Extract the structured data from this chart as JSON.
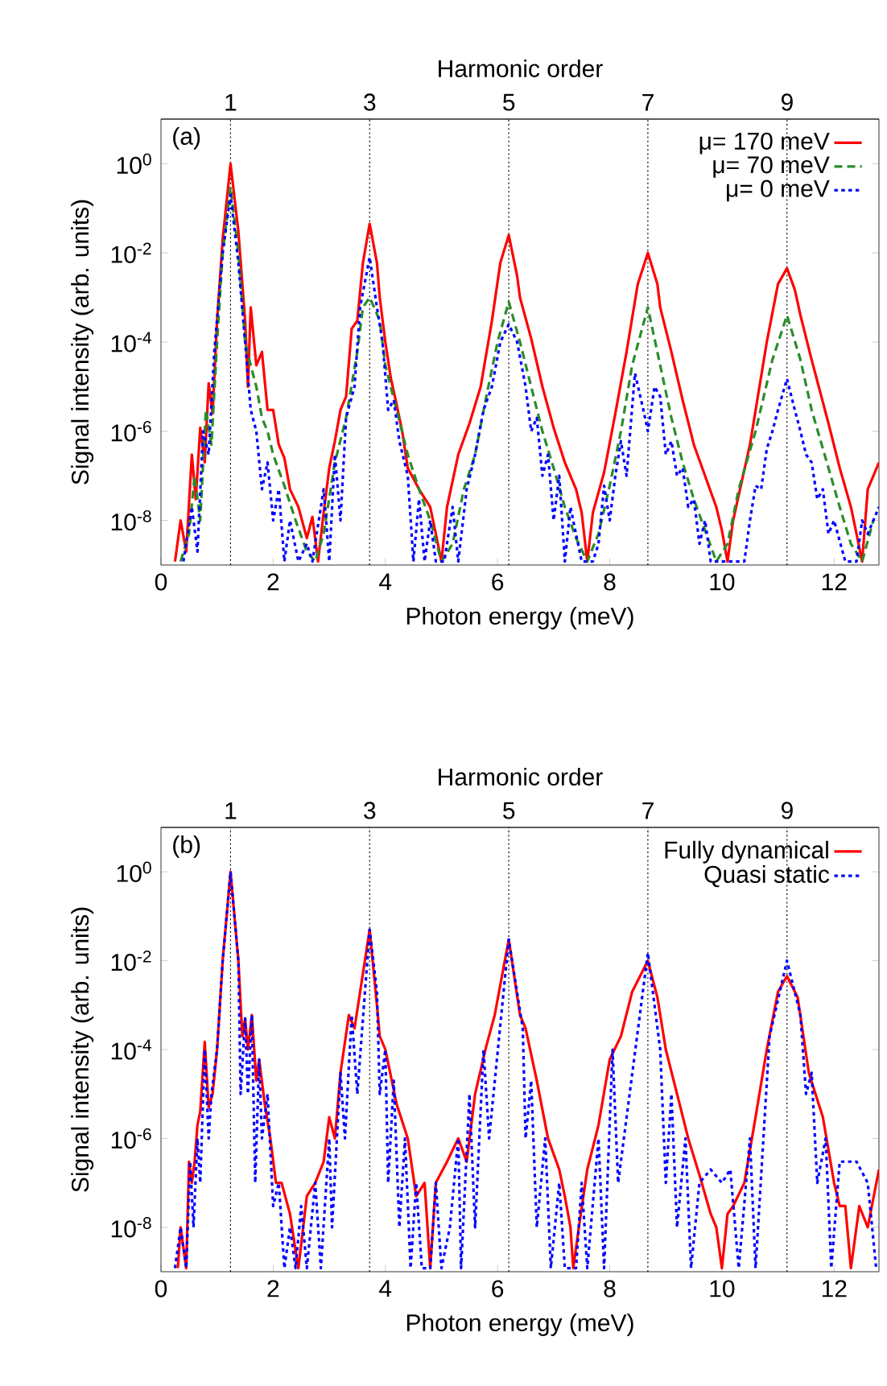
{
  "chart_data": [
    {
      "type": "line",
      "x2label": "Harmonic order",
      "xlabel": "Photon energy (meV)",
      "ylabel": "Signal intensity (arb. units)",
      "annotations": [
        "(a)"
      ],
      "log": "y",
      "legend": "top right",
      "marker": "none",
      "xlim": [
        0,
        12.8
      ],
      "ylim": [
        1e-09,
        10
      ],
      "x2lim": [
        0,
        10.32
      ],
      "xticks": [
        0,
        2,
        4,
        6,
        8,
        10,
        12
      ],
      "x2ticks": [
        1,
        3,
        5,
        7,
        9
      ],
      "yticks": [
        {
          "value": 1e-08,
          "label": "10$^{-8}$"
        },
        {
          "value": 1e-06,
          "label": "10$^{-6}$"
        },
        {
          "value": 0.0001,
          "label": "10$^{-4}$"
        },
        {
          "value": 0.01,
          "label": "10$^{-2}$"
        },
        {
          "value": 1,
          "label": "10$^{0}$"
        }
      ],
      "ref_lines": [
        {
          "axis": "x",
          "value": 1.24,
          "color": "#000000",
          "line_style": "dotted"
        },
        {
          "axis": "x",
          "value": 3.72,
          "color": "#000000",
          "line_style": "dotted"
        },
        {
          "axis": "x",
          "value": 6.2,
          "color": "#000000",
          "line_style": "dotted"
        },
        {
          "axis": "x",
          "value": 8.68,
          "color": "#000000",
          "line_style": "dotted"
        },
        {
          "axis": "x",
          "value": 11.16,
          "color": "#000000",
          "line_style": "dotted"
        }
      ],
      "series": [
        {
          "name": "μ= 170 meV",
          "color": "#ff0000",
          "line_style": "solid",
          "x": [
            0.25,
            0.35,
            0.45,
            0.55,
            0.62,
            0.7,
            0.78,
            0.85,
            0.92,
            1.0,
            1.1,
            1.24,
            1.38,
            1.5,
            1.55,
            1.6,
            1.7,
            1.8,
            1.9,
            2.0,
            2.1,
            2.2,
            2.3,
            2.45,
            2.6,
            2.7,
            2.8,
            2.9,
            3.0,
            3.1,
            3.2,
            3.3,
            3.4,
            3.5,
            3.6,
            3.72,
            3.85,
            3.9,
            4.0,
            4.1,
            4.2,
            4.3,
            4.4,
            4.6,
            4.8,
            4.9,
            5.0,
            5.1,
            5.3,
            5.5,
            5.7,
            5.9,
            6.05,
            6.2,
            6.35,
            6.4,
            6.6,
            6.8,
            7.0,
            7.2,
            7.4,
            7.5,
            7.6,
            7.7,
            7.9,
            8.1,
            8.3,
            8.5,
            8.68,
            8.85,
            8.9,
            9.1,
            9.3,
            9.5,
            9.7,
            9.9,
            10.0,
            10.1,
            10.2,
            10.5,
            10.8,
            11.0,
            11.16,
            11.3,
            11.4,
            11.6,
            11.9,
            12.1,
            12.3,
            12.4,
            12.5,
            12.6,
            12.8
          ],
          "values": [
            1.2e-09,
            1e-08,
            2e-09,
            3e-07,
            3e-08,
            1.2e-06,
            2e-07,
            1.2e-05,
            2.5e-06,
            0.0003,
            0.02,
            1,
            0.03,
            0.0003,
            1e-05,
            0.0006,
            3e-05,
            6e-05,
            3e-06,
            3e-06,
            5e-07,
            2.5e-07,
            5e-08,
            2e-08,
            4e-09,
            1.2e-08,
            1.2e-09,
            1.5e-08,
            1.5e-07,
            6e-07,
            3e-06,
            6e-06,
            0.0002,
            0.0003,
            0.006,
            0.045,
            0.006,
            0.001,
            0.0001,
            1.5e-05,
            4e-06,
            1e-06,
            1.5e-07,
            5e-08,
            2e-08,
            5e-09,
            1.2e-09,
            2e-08,
            3e-07,
            1.5e-06,
            1e-05,
            0.0003,
            0.006,
            0.025,
            0.003,
            0.001,
            0.00012,
            1e-05,
            1.2e-06,
            2e-07,
            5e-08,
            1.5e-08,
            1.2e-09,
            1.5e-08,
            1.2e-07,
            2.5e-06,
            6e-05,
            0.002,
            0.01,
            0.002,
            0.0006,
            6e-05,
            5e-06,
            5e-07,
            1e-07,
            2e-08,
            6e-09,
            1.2e-09,
            1e-08,
            5e-07,
            0.0001,
            0.002,
            0.0045,
            0.0015,
            0.0004,
            4e-05,
            1.5e-06,
            1.5e-07,
            2e-08,
            5e-09,
            1.2e-09,
            5e-08,
            2e-07
          ]
        },
        {
          "name": "μ= 70 meV",
          "color": "#2b8c2b",
          "line_style": "dashed",
          "x": [
            0.35,
            0.5,
            0.6,
            0.7,
            0.8,
            0.9,
            1.0,
            1.1,
            1.24,
            1.38,
            1.5,
            1.6,
            1.7,
            1.8,
            1.9,
            2.0,
            2.2,
            2.4,
            2.6,
            2.75,
            2.9,
            3.1,
            3.3,
            3.5,
            3.6,
            3.72,
            3.8,
            3.9,
            4.0,
            4.2,
            4.4,
            4.6,
            4.8,
            5.0,
            5.2,
            5.4,
            5.6,
            5.8,
            6.0,
            6.2,
            6.4,
            6.6,
            6.8,
            7.0,
            7.2,
            7.4,
            7.6,
            7.8,
            8.0,
            8.2,
            8.4,
            8.68,
            8.9,
            9.1,
            9.3,
            9.5,
            9.7,
            9.9,
            10.1,
            10.3,
            10.6,
            10.9,
            11.16,
            11.4,
            11.6,
            11.9,
            12.1,
            12.3,
            12.5,
            12.7
          ],
          "values": [
            1.2e-09,
            5e-09,
            1e-07,
            1e-08,
            3e-06,
            5e-07,
            0.0001,
            0.01,
            0.3,
            0.01,
            0.0001,
            3e-05,
            1e-05,
            2e-06,
            1e-06,
            3e-07,
            6e-08,
            1e-08,
            2e-09,
            1.2e-09,
            5e-09,
            2e-07,
            2e-06,
            6e-05,
            0.0006,
            0.001,
            0.0006,
            0.0003,
            3e-05,
            3e-06,
            3e-07,
            5e-08,
            1e-08,
            1.2e-09,
            3e-09,
            5e-08,
            3e-07,
            6e-06,
            0.0001,
            0.0008,
            0.0001,
            1e-05,
            1e-06,
            1.5e-07,
            2e-08,
            4e-09,
            1.2e-09,
            5e-09,
            6e-08,
            1e-06,
            3e-05,
            0.0006,
            3e-05,
            2e-06,
            2e-07,
            3e-08,
            6e-09,
            1.2e-09,
            3e-09,
            5e-08,
            1e-06,
            4e-05,
            0.0004,
            4e-05,
            3e-06,
            1.5e-07,
            2e-08,
            3e-09,
            1.2e-09,
            1e-08
          ]
        },
        {
          "name": "μ= 0 meV",
          "color": "#0000ff",
          "line_style": "dotted",
          "x": [
            0.4,
            0.55,
            0.65,
            0.75,
            0.85,
            0.95,
            1.1,
            1.24,
            1.38,
            1.5,
            1.6,
            1.7,
            1.8,
            1.9,
            2.0,
            2.1,
            2.2,
            2.3,
            2.45,
            2.6,
            2.7,
            2.9,
            3.0,
            3.1,
            3.2,
            3.3,
            3.45,
            3.55,
            3.72,
            3.85,
            3.95,
            4.05,
            4.15,
            4.25,
            4.4,
            4.5,
            4.6,
            4.7,
            4.8,
            4.9,
            5.05,
            5.2,
            5.3,
            5.45,
            5.6,
            5.75,
            5.9,
            6.05,
            6.2,
            6.35,
            6.5,
            6.6,
            6.7,
            6.8,
            6.9,
            7.0,
            7.1,
            7.2,
            7.3,
            7.5,
            7.7,
            7.8,
            7.9,
            8.0,
            8.1,
            8.2,
            8.3,
            8.45,
            8.6,
            8.68,
            8.8,
            8.9,
            9.0,
            9.1,
            9.2,
            9.3,
            9.4,
            9.5,
            9.6,
            9.7,
            9.8,
            10.4,
            10.5,
            10.6,
            10.7,
            10.8,
            10.9,
            11.0,
            11.16,
            11.3,
            11.4,
            11.5,
            11.6,
            11.7,
            11.8,
            11.9,
            12.0,
            12.2,
            12.4,
            12.5,
            12.6,
            12.8
          ],
          "values": [
            1.2e-09,
            2e-08,
            2e-09,
            1e-06,
            3e-07,
            6e-05,
            0.01,
            0.2,
            0.006,
            0.0001,
            3e-06,
            1e-06,
            5e-08,
            2e-07,
            1e-08,
            5e-08,
            1.2e-09,
            1e-08,
            1.2e-09,
            3e-09,
            1.2e-09,
            5e-08,
            1.2e-09,
            3e-07,
            1e-08,
            2e-06,
            1e-05,
            0.0006,
            0.008,
            0.0006,
            0.0001,
            3e-06,
            5e-06,
            6e-07,
            1e-07,
            1.2e-09,
            3e-08,
            1.2e-09,
            1e-08,
            1.2e-09,
            1.2e-09,
            2e-08,
            1.2e-09,
            5e-08,
            3e-07,
            3e-06,
            1e-05,
            0.0001,
            0.00025,
            0.0001,
            1e-05,
            1e-06,
            2e-06,
            1e-07,
            3e-07,
            1e-08,
            1e-07,
            1.2e-09,
            2e-08,
            1.2e-09,
            1.2e-09,
            3e-09,
            6e-08,
            1e-08,
            1e-07,
            6e-07,
            1e-07,
            2e-05,
            3e-06,
            1e-06,
            1e-05,
            6e-06,
            3e-07,
            6e-07,
            1e-07,
            1.5e-07,
            2e-08,
            3e-08,
            3e-09,
            1e-08,
            1.2e-09,
            1.2e-09,
            1e-08,
            6e-08,
            5e-08,
            4e-07,
            1e-06,
            3e-06,
            1.5e-05,
            3e-06,
            1e-06,
            3e-07,
            2e-07,
            3e-08,
            5e-08,
            5e-09,
            1e-08,
            1.2e-09,
            1.2e-09,
            1e-08,
            5e-09,
            2e-08
          ]
        }
      ]
    },
    {
      "type": "line",
      "x2label": "Harmonic order",
      "xlabel": "Photon energy (meV)",
      "ylabel": "Signal intensity (arb. units)",
      "annotations": [
        "(b)"
      ],
      "log": "y",
      "legend": "top right",
      "marker": "none",
      "xlim": [
        0,
        12.8
      ],
      "ylim": [
        1e-09,
        10
      ],
      "x2lim": [
        0,
        10.32
      ],
      "xticks": [
        0,
        2,
        4,
        6,
        8,
        10,
        12
      ],
      "x2ticks": [
        1,
        3,
        5,
        7,
        9
      ],
      "yticks": [
        {
          "value": 1e-08,
          "label": "10$^{-8}$"
        },
        {
          "value": 1e-06,
          "label": "10$^{-6}$"
        },
        {
          "value": 0.0001,
          "label": "10$^{-4}$"
        },
        {
          "value": 0.01,
          "label": "10$^{-2}$"
        },
        {
          "value": 1,
          "label": "10$^{0}$"
        }
      ],
      "ref_lines": [
        {
          "axis": "x",
          "value": 1.24,
          "color": "#000000",
          "line_style": "dotted"
        },
        {
          "axis": "x",
          "value": 3.72,
          "color": "#000000",
          "line_style": "dotted"
        },
        {
          "axis": "x",
          "value": 6.2,
          "color": "#000000",
          "line_style": "dotted"
        },
        {
          "axis": "x",
          "value": 8.68,
          "color": "#000000",
          "line_style": "dotted"
        },
        {
          "axis": "x",
          "value": 11.16,
          "color": "#000000",
          "line_style": "dotted"
        }
      ],
      "series": [
        {
          "name": "Fully dynamical",
          "color": "#ff0000",
          "line_style": "solid",
          "x": [
            0.3,
            0.35,
            0.45,
            0.5,
            0.55,
            0.6,
            0.65,
            0.7,
            0.78,
            0.85,
            0.92,
            1.0,
            1.1,
            1.24,
            1.38,
            1.45,
            1.5,
            1.55,
            1.62,
            1.7,
            1.75,
            1.85,
            1.95,
            2.05,
            2.15,
            2.3,
            2.4,
            2.45,
            2.6,
            2.75,
            2.9,
            3.0,
            3.1,
            3.2,
            3.35,
            3.45,
            3.72,
            3.85,
            3.9,
            4.0,
            4.05,
            4.2,
            4.4,
            4.55,
            4.7,
            4.8,
            4.9,
            5.1,
            5.3,
            5.45,
            5.6,
            5.8,
            5.95,
            6.2,
            6.4,
            6.5,
            6.7,
            6.9,
            7.1,
            7.2,
            7.3,
            7.35,
            7.45,
            7.6,
            7.8,
            8.0,
            8.2,
            8.4,
            8.68,
            8.85,
            9.0,
            9.2,
            9.4,
            9.6,
            9.8,
            9.9,
            10.0,
            10.1,
            10.2,
            10.4,
            10.6,
            10.8,
            11.0,
            11.16,
            11.35,
            11.55,
            11.8,
            12.0,
            12.1,
            12.2,
            12.3,
            12.45,
            12.6,
            12.8
          ],
          "values": [
            1.2e-09,
            1e-08,
            1.2e-09,
            3e-07,
            1e-07,
            3e-07,
            2e-06,
            4e-06,
            0.00015,
            5e-06,
            1e-05,
            0.0001,
            0.01,
            1,
            0.01,
            0.0002,
            0.0005,
            0.0001,
            0.0006,
            2e-05,
            6e-05,
            6e-06,
            1e-06,
            1e-07,
            1e-07,
            2e-08,
            3e-09,
            1.2e-09,
            5e-08,
            1e-07,
            3e-07,
            3e-06,
            1e-06,
            3e-05,
            0.0006,
            0.0003,
            0.05,
            0.001,
            0.0002,
            0.0001,
            5e-05,
            6e-06,
            1e-06,
            5e-08,
            1e-07,
            1.2e-09,
            1e-07,
            3e-07,
            1e-06,
            3e-07,
            1e-05,
            0.00012,
            0.0006,
            0.03,
            0.0006,
            0.0003,
            2e-05,
            1e-06,
            2e-07,
            5e-08,
            1e-08,
            1.2e-09,
            1e-08,
            2e-07,
            2e-06,
            6e-05,
            0.0002,
            0.002,
            0.01,
            0.0015,
            0.0001,
            1e-05,
            1e-06,
            1.5e-07,
            2e-08,
            1e-08,
            1.2e-09,
            2e-08,
            3e-08,
            1e-07,
            3e-06,
            0.0001,
            0.002,
            0.0045,
            0.0015,
            3e-05,
            3e-06,
            1e-07,
            3e-08,
            3e-08,
            1.2e-09,
            3e-08,
            1e-08,
            2e-07
          ]
        },
        {
          "name": "Quasi static",
          "color": "#0000ff",
          "line_style": "dotted",
          "x": [
            0.25,
            0.35,
            0.45,
            0.52,
            0.58,
            0.65,
            0.7,
            0.78,
            0.85,
            0.9,
            1.0,
            1.1,
            1.24,
            1.38,
            1.42,
            1.5,
            1.55,
            1.62,
            1.68,
            1.75,
            1.8,
            1.9,
            2.0,
            2.1,
            2.2,
            2.3,
            2.4,
            2.5,
            2.6,
            2.75,
            2.85,
            3.0,
            3.05,
            3.2,
            3.28,
            3.4,
            3.5,
            3.72,
            3.85,
            3.9,
            4.0,
            4.05,
            4.15,
            4.25,
            4.35,
            4.45,
            4.55,
            4.65,
            4.8,
            4.9,
            5.0,
            5.15,
            5.3,
            5.35,
            5.5,
            5.6,
            5.75,
            5.85,
            6.2,
            6.45,
            6.5,
            6.6,
            6.7,
            6.85,
            6.95,
            7.1,
            7.2,
            7.4,
            7.5,
            7.6,
            7.8,
            7.9,
            8.05,
            8.15,
            8.68,
            8.9,
            9.0,
            9.1,
            9.2,
            9.35,
            9.45,
            9.6,
            9.8,
            10.0,
            10.15,
            10.3,
            10.5,
            10.6,
            10.85,
            11.16,
            11.4,
            11.5,
            11.6,
            11.7,
            11.85,
            11.95,
            12.1,
            12.4,
            12.6,
            12.75
          ],
          "values": [
            1.2e-09,
            1e-08,
            1.2e-09,
            3e-07,
            1e-08,
            1e-06,
            1e-07,
            0.0001,
            1e-06,
            1e-05,
            0.0001,
            0.01,
            1,
            0.01,
            1e-05,
            0.0005,
            1e-05,
            0.0006,
            1e-07,
            6e-05,
            1e-06,
            1e-05,
            3e-08,
            1e-07,
            1.2e-09,
            1e-08,
            1.2e-09,
            3e-08,
            1.2e-09,
            1e-07,
            1.2e-09,
            1e-06,
            1e-08,
            3e-05,
            1e-06,
            0.0006,
            1e-05,
            0.05,
            0.002,
            1e-05,
            0.0001,
            1e-07,
            2e-05,
            1e-08,
            1e-06,
            1.2e-09,
            1e-07,
            1.2e-09,
            1.2e-09,
            1e-07,
            1.2e-09,
            1e-08,
            1e-06,
            1.2e-09,
            1e-05,
            1e-08,
            0.0001,
            1e-06,
            0.03,
            0.0003,
            1e-06,
            2e-05,
            1e-08,
            1e-06,
            1.2e-09,
            1e-07,
            1.2e-09,
            1.2e-09,
            1e-07,
            1.2e-09,
            1e-06,
            1.2e-09,
            0.0001,
            1e-07,
            0.015,
            0.0001,
            1e-07,
            1e-05,
            1e-08,
            1e-06,
            1.2e-09,
            1e-07,
            2e-07,
            1e-07,
            2e-07,
            1.2e-09,
            1e-06,
            1.2e-09,
            0.0002,
            0.01,
            0.0006,
            1e-05,
            3e-05,
            1e-07,
            1e-06,
            1.2e-09,
            3e-07,
            3e-07,
            1e-07,
            1.2e-09
          ]
        }
      ]
    }
  ]
}
